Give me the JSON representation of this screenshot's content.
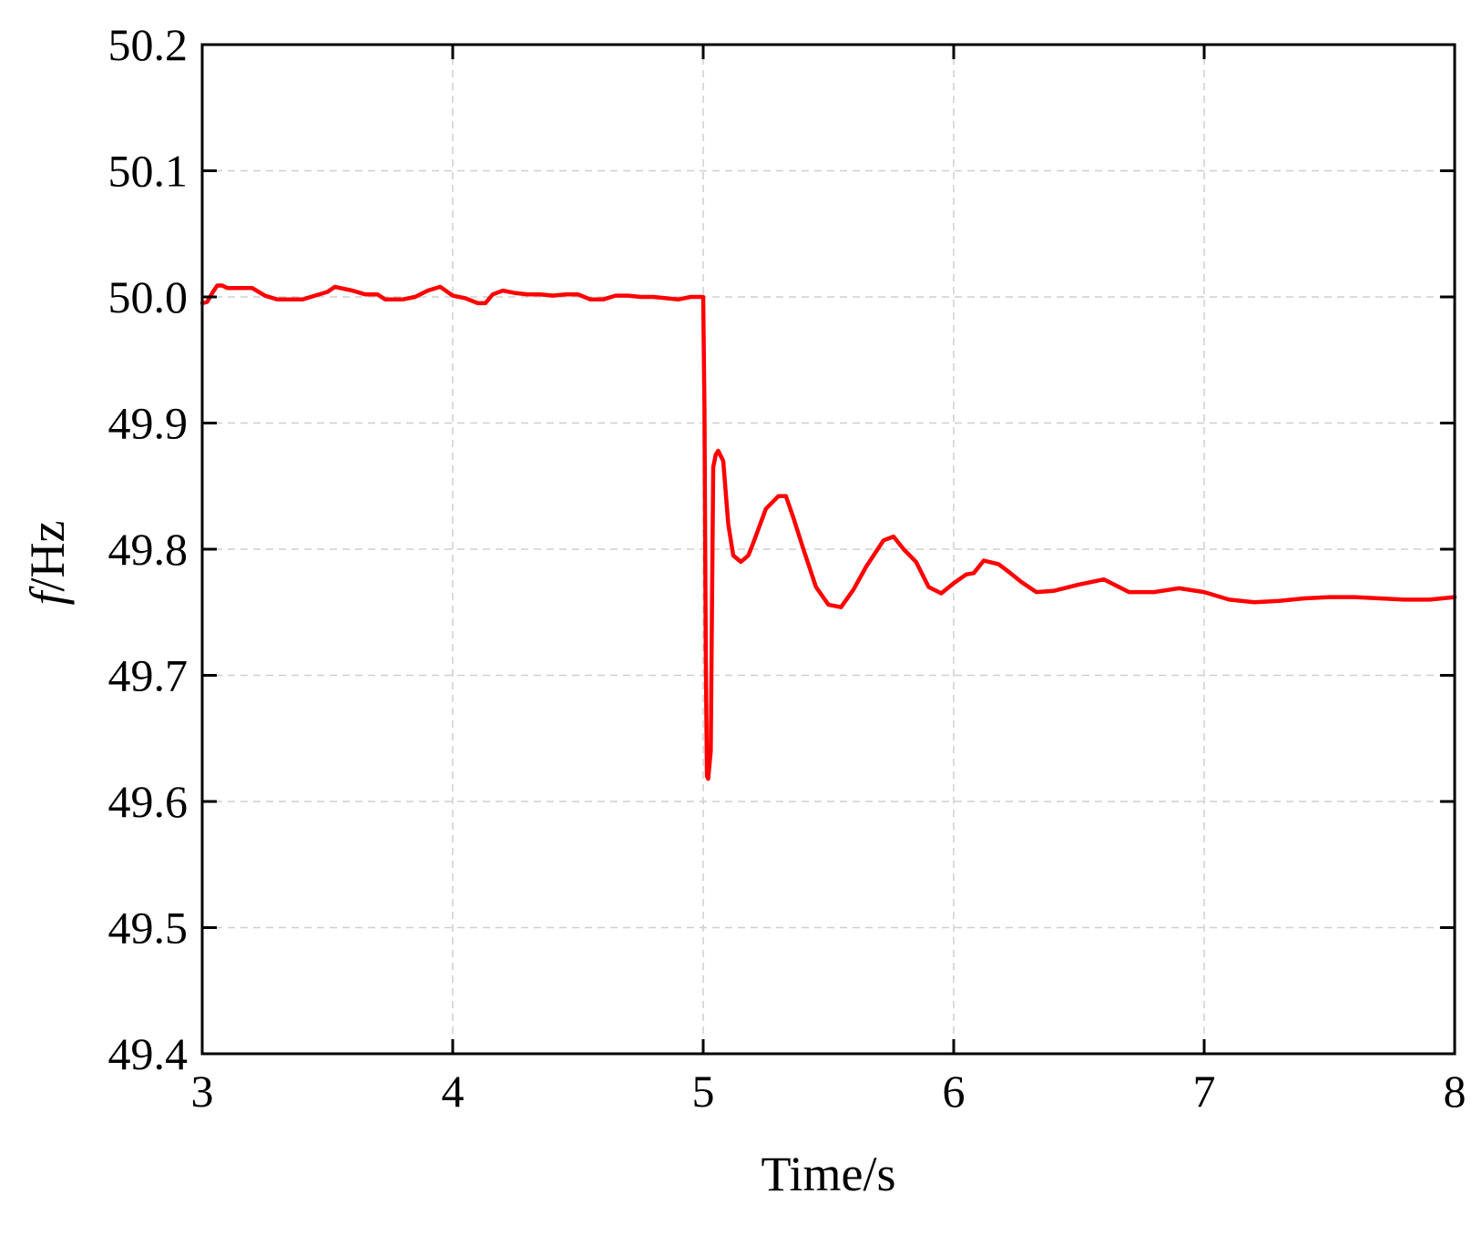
{
  "chart_data": {
    "type": "line",
    "title": "",
    "xlabel": "Time/s",
    "ylabel_italic": "f",
    "ylabel_rest": "/Hz",
    "xlim": [
      3,
      8
    ],
    "ylim": [
      49.4,
      50.2
    ],
    "xticks": [
      3,
      4,
      5,
      6,
      7,
      8
    ],
    "yticks": [
      49.4,
      49.5,
      49.6,
      49.7,
      49.8,
      49.9,
      50.0,
      50.1,
      50.2
    ],
    "xtick_labels": [
      "3",
      "4",
      "5",
      "6",
      "7",
      "8"
    ],
    "ytick_labels": [
      "49.4",
      "49.5",
      "49.6",
      "49.7",
      "49.8",
      "49.9",
      "50.0",
      "50.1",
      "50.2"
    ],
    "grid": true,
    "legend": "none",
    "series": [
      {
        "color": "#ff0000",
        "x": [
          3.0,
          3.02,
          3.04,
          3.06,
          3.08,
          3.1,
          3.15,
          3.2,
          3.25,
          3.3,
          3.4,
          3.45,
          3.5,
          3.53,
          3.6,
          3.65,
          3.7,
          3.73,
          3.8,
          3.85,
          3.9,
          3.95,
          4.0,
          4.05,
          4.1,
          4.13,
          4.16,
          4.2,
          4.25,
          4.3,
          4.35,
          4.4,
          4.45,
          4.5,
          4.55,
          4.6,
          4.65,
          4.7,
          4.75,
          4.8,
          4.85,
          4.9,
          4.95,
          5.0,
          5.005,
          5.01,
          5.015,
          5.02,
          5.03,
          5.035,
          5.04,
          5.05,
          5.06,
          5.08,
          5.1,
          5.12,
          5.15,
          5.18,
          5.2,
          5.25,
          5.3,
          5.33,
          5.36,
          5.4,
          5.45,
          5.5,
          5.55,
          5.6,
          5.65,
          5.72,
          5.76,
          5.8,
          5.85,
          5.9,
          5.95,
          6.0,
          6.05,
          6.08,
          6.12,
          6.18,
          6.22,
          6.27,
          6.33,
          6.4,
          6.5,
          6.6,
          6.7,
          6.8,
          6.9,
          7.0,
          7.1,
          7.2,
          7.3,
          7.4,
          7.5,
          7.6,
          7.7,
          7.8,
          7.9,
          8.0
        ],
        "values": [
          49.995,
          49.996,
          50.003,
          50.009,
          50.009,
          50.007,
          50.007,
          50.007,
          50.001,
          49.998,
          49.998,
          50.001,
          50.004,
          50.008,
          50.005,
          50.002,
          50.002,
          49.998,
          49.998,
          50.0,
          50.005,
          50.008,
          50.001,
          49.999,
          49.995,
          49.995,
          50.002,
          50.005,
          50.003,
          50.002,
          50.002,
          50.001,
          50.002,
          50.002,
          49.998,
          49.998,
          50.001,
          50.001,
          50.0,
          50.0,
          49.999,
          49.998,
          50.0,
          50.0,
          49.91,
          49.72,
          49.62,
          49.618,
          49.64,
          49.75,
          49.865,
          49.875,
          49.878,
          49.87,
          49.82,
          49.795,
          49.79,
          49.795,
          49.805,
          49.832,
          49.842,
          49.842,
          49.825,
          49.8,
          49.77,
          49.756,
          49.754,
          49.768,
          49.786,
          49.807,
          49.81,
          49.8,
          49.79,
          49.77,
          49.765,
          49.773,
          49.78,
          49.781,
          49.791,
          49.788,
          49.782,
          49.774,
          49.766,
          49.767,
          49.772,
          49.776,
          49.766,
          49.766,
          49.769,
          49.766,
          49.76,
          49.758,
          49.759,
          49.761,
          49.762,
          49.762,
          49.761,
          49.76,
          49.76,
          49.762
        ]
      }
    ]
  }
}
